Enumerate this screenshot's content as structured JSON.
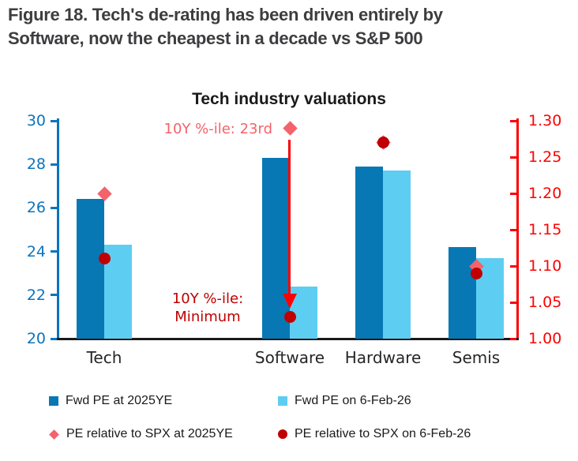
{
  "figure_caption": {
    "line1": "Figure 18. Tech's de-rating has been driven entirely by",
    "line2": "Software, now the cheapest in a decade vs S&P 500"
  },
  "chart_data": {
    "type": "bar",
    "title": "Tech industry valuations",
    "categories": [
      "Tech",
      "Software",
      "Hardware",
      "Semis"
    ],
    "grid": false,
    "legend_position": "bottom",
    "axes": {
      "left": {
        "min": 20,
        "max": 30,
        "tick_labels": [
          "30",
          "28",
          "26",
          "24",
          "22",
          "20"
        ],
        "tick_values": [
          30,
          28,
          26,
          24,
          22,
          20
        ],
        "color": "#0b74bd"
      },
      "right": {
        "min": 1.0,
        "max": 1.3,
        "tick_labels": [
          "1.30",
          "1.25",
          "1.20",
          "1.15",
          "1.10",
          "1.05",
          "1.00"
        ],
        "tick_values": [
          1.3,
          1.25,
          1.2,
          1.15,
          1.1,
          1.05,
          1.0
        ],
        "color": "#fb0204"
      }
    },
    "series": [
      {
        "name": "Fwd PE at 2025YE",
        "type": "bar",
        "axis": "left",
        "marker": "square",
        "color": "#0878b4",
        "values": [
          26.4,
          28.3,
          27.9,
          24.2
        ]
      },
      {
        "name": "Fwd PE on 6-Feb-26",
        "type": "bar",
        "axis": "left",
        "marker": "square",
        "color": "#5ecdf2",
        "values": [
          24.3,
          22.4,
          27.7,
          23.7
        ]
      },
      {
        "name": "PE relative to SPX at 2025YE",
        "type": "point",
        "axis": "right",
        "marker": "diamond",
        "color": "#f4626b",
        "values": [
          1.2,
          1.29,
          1.27,
          1.1
        ]
      },
      {
        "name": "PE relative to SPX on 6-Feb-26",
        "type": "point",
        "axis": "right",
        "marker": "circle",
        "color": "#c00000",
        "values": [
          1.11,
          1.03,
          1.27,
          1.09
        ]
      }
    ],
    "annotations": {
      "at_2025ye": {
        "text": "10Y %-ile: 23rd",
        "color": "#f4626b",
        "points_to": "Software"
      },
      "on_6feb": {
        "line1": "10Y %-ile:",
        "line2": "Minimum",
        "color": "#c00000",
        "points_to": "Software"
      },
      "arrow_color": "#fb0204"
    }
  }
}
